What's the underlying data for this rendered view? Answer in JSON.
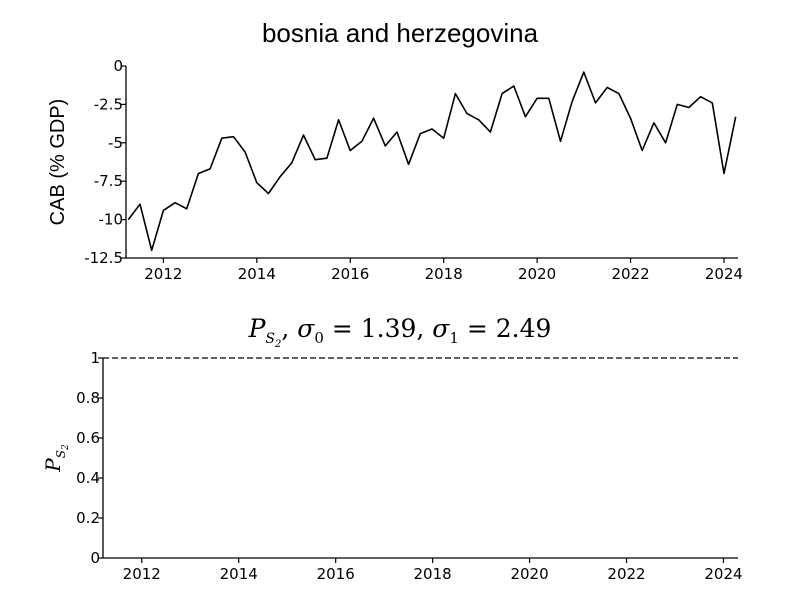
{
  "chart_data": [
    {
      "type": "line",
      "title": "bosnia and herzegovina",
      "xlabel": "",
      "ylabel": "CAB (% GDP)",
      "xlim": [
        2011.2,
        2024.3
      ],
      "ylim": [
        -12.5,
        0
      ],
      "xticks": [
        2012,
        2014,
        2016,
        2018,
        2020,
        2022,
        2024
      ],
      "xtick_labels": [
        "2012",
        "2014",
        "2016",
        "2018",
        "2020",
        "2022",
        "2024"
      ],
      "yticks": [
        0,
        -2.5,
        -5,
        -7.5,
        -10,
        -12.5
      ],
      "ytick_labels": [
        "0",
        "-2.5",
        "-5",
        "-7.5",
        "-10",
        "-12.5"
      ],
      "grid": false,
      "series": [
        {
          "x": [
            2011.25,
            2011.5,
            2011.75,
            2012.0,
            2012.25,
            2012.5,
            2012.75,
            2013.0,
            2013.25,
            2013.5,
            2013.75,
            2014.0,
            2014.25,
            2014.5,
            2014.75,
            2015.0,
            2015.25,
            2015.5,
            2015.75,
            2016.0,
            2016.25,
            2016.5,
            2016.75,
            2017.0,
            2017.25,
            2017.5,
            2017.75,
            2018.0,
            2018.25,
            2018.5,
            2018.75,
            2019.0,
            2019.25,
            2019.5,
            2019.75,
            2020.0,
            2020.25,
            2020.5,
            2020.75,
            2021.0,
            2021.25,
            2021.5,
            2021.75,
            2022.0,
            2022.25,
            2022.5,
            2022.75,
            2023.0,
            2023.25,
            2023.5,
            2023.75,
            2024.0,
            2024.25
          ],
          "y": [
            -10.0,
            -9.0,
            -12.0,
            -9.4,
            -8.9,
            -9.3,
            -7.0,
            -6.7,
            -4.7,
            -4.6,
            -5.6,
            -7.6,
            -8.3,
            -7.2,
            -6.3,
            -4.5,
            -6.1,
            -6.0,
            -3.5,
            -5.5,
            -4.9,
            -3.4,
            -5.2,
            -4.3,
            -6.4,
            -4.4,
            -4.1,
            -4.7,
            -1.8,
            -3.1,
            -3.5,
            -4.3,
            -1.8,
            -1.3,
            -3.3,
            -2.1,
            -2.1,
            -4.9,
            -2.3,
            -0.4,
            -2.4,
            -1.4,
            -1.8,
            -3.4,
            -5.5,
            -3.7,
            -5.0,
            -2.5,
            -2.7,
            -2.0,
            -2.4,
            -7.0,
            -3.3
          ]
        }
      ]
    },
    {
      "type": "line",
      "title": "P_{S_2}, σ_0 = 1.39, σ_1 = 2.49",
      "title_parts": {
        "P": "P",
        "S": "S",
        "sub2": "2",
        "sep1": ", ",
        "sigma": "σ",
        "sub0": "0",
        "eq1": " = 1.39, ",
        "sub1": "1",
        "eq2": " = 2.49"
      },
      "xlabel": "",
      "ylabel": "P_{S_2}",
      "ylabel_parts": {
        "P": "P",
        "S": "S",
        "sub2": "2"
      },
      "xlim": [
        2011.2,
        2024.3
      ],
      "ylim": [
        0,
        1
      ],
      "xticks": [
        2012,
        2014,
        2016,
        2018,
        2020,
        2022,
        2024
      ],
      "xtick_labels": [
        "2012",
        "2014",
        "2016",
        "2018",
        "2020",
        "2022",
        "2024"
      ],
      "yticks": [
        0,
        0.2,
        0.4,
        0.6,
        0.8,
        1
      ],
      "ytick_labels": [
        "0",
        "0.2",
        "0.4",
        "0.6",
        "0.8",
        "1"
      ],
      "grid": false,
      "series": [
        {
          "style": "dashed",
          "x": [
            2011.2,
            2024.3
          ],
          "y": [
            1,
            1
          ]
        }
      ]
    }
  ]
}
